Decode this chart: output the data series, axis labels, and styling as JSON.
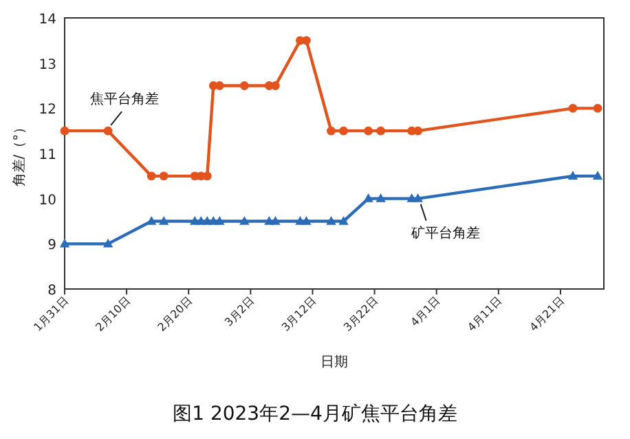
{
  "chart_data": {
    "type": "line",
    "title": "图1 2023年2—4月矿焦平台角差",
    "xlabel": "日期",
    "ylabel": "角差/（°）",
    "x": [
      "2023-01-31",
      "2023-02-07",
      "2023-02-14",
      "2023-02-16",
      "2023-02-21",
      "2023-02-22",
      "2023-02-23",
      "2023-02-24",
      "2023-02-25",
      "2023-03-01",
      "2023-03-05",
      "2023-03-06",
      "2023-03-10",
      "2023-03-11",
      "2023-03-15",
      "2023-03-17",
      "2023-03-21",
      "2023-03-23",
      "2023-03-28",
      "2023-03-29",
      "2023-04-23",
      "2023-04-27"
    ],
    "series": [
      {
        "name": "焦平台角差",
        "color": "#e2531d",
        "marker": "circle",
        "values": [
          11.5,
          11.5,
          10.5,
          10.5,
          10.5,
          10.5,
          10.5,
          12.5,
          12.5,
          12.5,
          12.5,
          12.5,
          13.5,
          13.5,
          11.5,
          11.5,
          11.5,
          11.5,
          11.5,
          11.5,
          12,
          12
        ]
      },
      {
        "name": "矿平台角差",
        "color": "#2b6cb8",
        "marker": "triangle",
        "values": [
          9,
          9,
          9.5,
          9.5,
          9.5,
          9.5,
          9.5,
          9.5,
          9.5,
          9.5,
          9.5,
          9.5,
          9.5,
          9.5,
          9.5,
          9.5,
          10,
          10,
          10,
          10,
          10.5,
          10.5
        ]
      }
    ],
    "xlim": [
      "2023-01-31",
      "2023-04-28"
    ],
    "xticks": [
      {
        "value": "2023-01-31",
        "label": "1月31日"
      },
      {
        "value": "2023-02-10",
        "label": "2月10日"
      },
      {
        "value": "2023-02-20",
        "label": "2月20日"
      },
      {
        "value": "2023-03-02",
        "label": "3月2日"
      },
      {
        "value": "2023-03-12",
        "label": "3月12日"
      },
      {
        "value": "2023-03-22",
        "label": "3月22日"
      },
      {
        "value": "2023-04-01",
        "label": "4月1日"
      },
      {
        "value": "2023-04-11",
        "label": "4月11日"
      },
      {
        "value": "2023-04-21",
        "label": "4月21日"
      }
    ],
    "ylim": [
      8,
      14
    ],
    "yticks": [
      8,
      9,
      10,
      11,
      12,
      13,
      14
    ],
    "grid": false,
    "legend": false,
    "line_style": "solid"
  }
}
